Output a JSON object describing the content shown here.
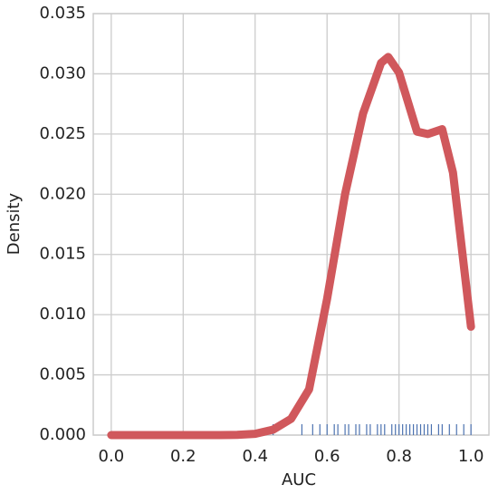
{
  "chart_data": {
    "type": "line",
    "x_label": "AUC",
    "y_label": "Density",
    "x": [
      0.0,
      0.1,
      0.2,
      0.3,
      0.35,
      0.4,
      0.45,
      0.5,
      0.55,
      0.6,
      0.65,
      0.7,
      0.75,
      0.77,
      0.8,
      0.85,
      0.88,
      0.92,
      0.95,
      1.0
    ],
    "series": [
      {
        "color": "#d0585c",
        "values": [
          0,
          0,
          0,
          0,
          2e-05,
          0.0001,
          0.00045,
          0.00135,
          0.0038,
          0.0113,
          0.02,
          0.0267,
          0.0309,
          0.0314,
          0.0301,
          0.0252,
          0.025,
          0.0254,
          0.0218,
          0.009
        ]
      }
    ],
    "rug": {
      "color": "#4c72b0",
      "values": [
        0.45,
        0.53,
        0.56,
        0.58,
        0.6,
        0.62,
        0.63,
        0.65,
        0.66,
        0.68,
        0.69,
        0.71,
        0.72,
        0.74,
        0.75,
        0.76,
        0.78,
        0.79,
        0.8,
        0.81,
        0.82,
        0.83,
        0.84,
        0.85,
        0.86,
        0.87,
        0.88,
        0.89,
        0.91,
        0.92,
        0.94,
        0.96,
        0.98,
        1.0
      ]
    },
    "xlim": [
      -0.05,
      1.05
    ],
    "ylim": [
      0,
      0.035
    ],
    "xticks": [
      {
        "value": 0,
        "label": "0.0"
      },
      {
        "value": 0.2,
        "label": "0.2"
      },
      {
        "value": 0.4,
        "label": "0.4"
      },
      {
        "value": 0.6,
        "label": "0.6"
      },
      {
        "value": 0.8,
        "label": "0.8"
      },
      {
        "value": 1,
        "label": "1.0"
      }
    ],
    "yticks": [
      {
        "value": 0,
        "label": "0.000"
      },
      {
        "value": 0.005,
        "label": "0.005"
      },
      {
        "value": 0.01,
        "label": "0.010"
      },
      {
        "value": 0.015,
        "label": "0.015"
      },
      {
        "value": 0.02,
        "label": "0.020"
      },
      {
        "value": 0.025,
        "label": "0.025"
      },
      {
        "value": 0.03,
        "label": "0.030"
      },
      {
        "value": 0.035,
        "label": "0.035"
      }
    ],
    "grid": true
  }
}
